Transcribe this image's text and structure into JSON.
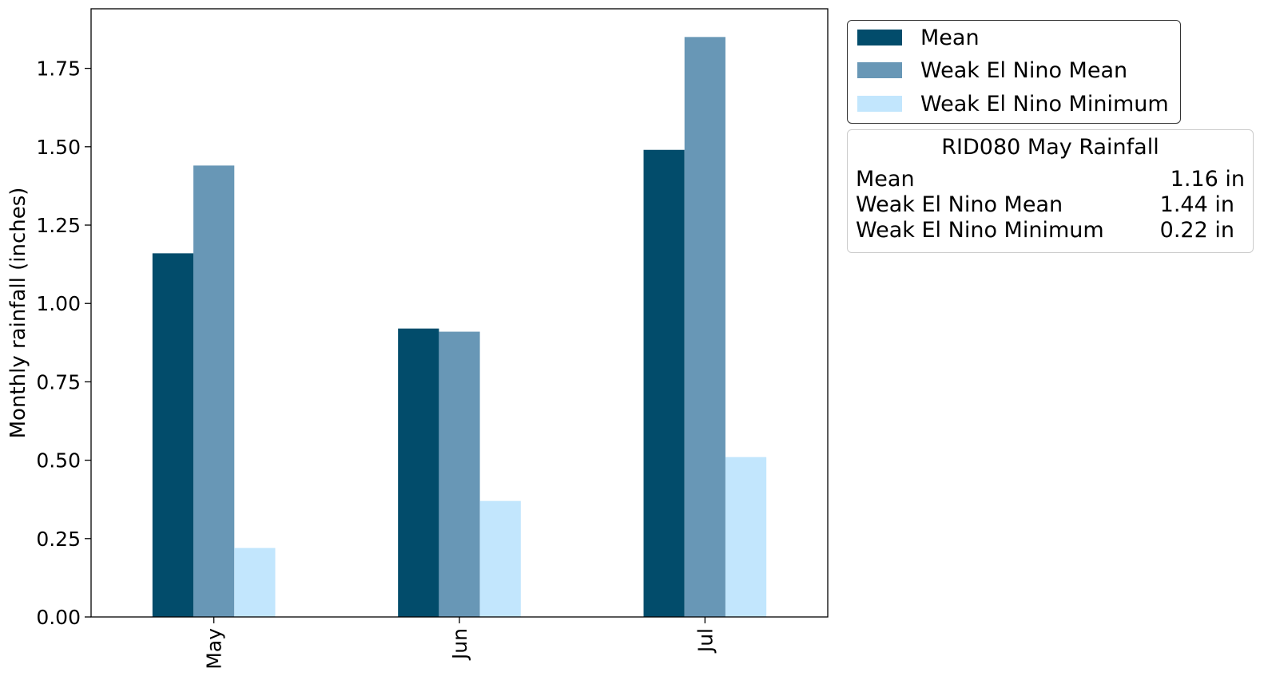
{
  "chart_data": {
    "type": "bar",
    "categories": [
      "May",
      "Jun",
      "Jul"
    ],
    "series": [
      {
        "name": "Mean",
        "color": "#024c6b",
        "values": [
          1.16,
          0.92,
          1.49
        ]
      },
      {
        "name": "Weak El Nino Mean",
        "color": "#6897b6",
        "values": [
          1.44,
          0.91,
          1.85
        ]
      },
      {
        "name": "Weak El Nino Minimum",
        "color": "#c2e6fd",
        "values": [
          0.22,
          0.37,
          0.51
        ]
      }
    ],
    "ylabel": "Monthly rainfall (inches)",
    "xlabel": "",
    "ylim": [
      0,
      1.94
    ],
    "yticks": [
      "0.00",
      "0.25",
      "0.50",
      "0.75",
      "1.00",
      "1.25",
      "1.50",
      "1.75"
    ],
    "grid": false,
    "legend_position": "outside-top-right"
  },
  "legend": {
    "items": [
      {
        "label": "Mean",
        "color": "#024c6b"
      },
      {
        "label": "Weak El Nino Mean",
        "color": "#6897b6"
      },
      {
        "label": "Weak El Nino Minimum",
        "color": "#c2e6fd"
      }
    ]
  },
  "info_box": {
    "title": "RID080 May Rainfall",
    "rows": [
      {
        "label": "Mean",
        "value": "1.16 in"
      },
      {
        "label": "Weak El Nino Mean",
        "value": "1.44 in"
      },
      {
        "label": "Weak El Nino Minimum",
        "value": "0.22 in"
      }
    ]
  }
}
